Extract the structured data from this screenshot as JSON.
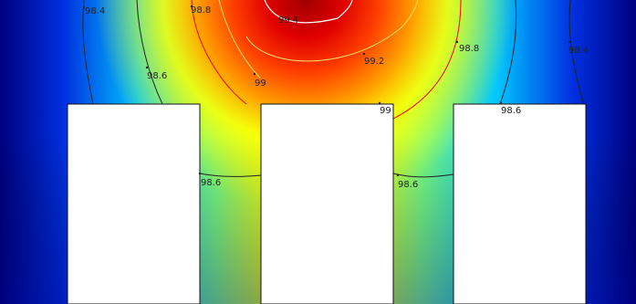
{
  "contour_labels": [
    {
      "text": "98.4",
      "color": "#222222"
    },
    {
      "text": "98.8",
      "color": "#222222"
    },
    {
      "text": "99.4",
      "color": "#222222"
    },
    {
      "text": "98.8",
      "color": "#222222"
    },
    {
      "text": "98.4",
      "color": "#222222"
    },
    {
      "text": "99.2",
      "color": "#222222"
    },
    {
      "text": "98.6",
      "color": "#222222"
    },
    {
      "text": "99",
      "color": "#222222"
    },
    {
      "text": "99",
      "color": "#222222"
    },
    {
      "text": "98.6",
      "color": "#222222"
    },
    {
      "text": "98.6",
      "color": "#222222"
    },
    {
      "text": "98.6",
      "color": "#222222"
    }
  ],
  "colors": {
    "low": "#00007f",
    "mid_low": "#00c8ff",
    "mid": "#ffff00",
    "mid_high": "#ff4000",
    "high": "#a00000",
    "contour_dark": "#222222",
    "contour_red": "#ff0000",
    "contour_light": "#ffdd66",
    "contour_white": "#ffffff",
    "block_fill": "#ffffff",
    "block_stroke": "#111111"
  }
}
